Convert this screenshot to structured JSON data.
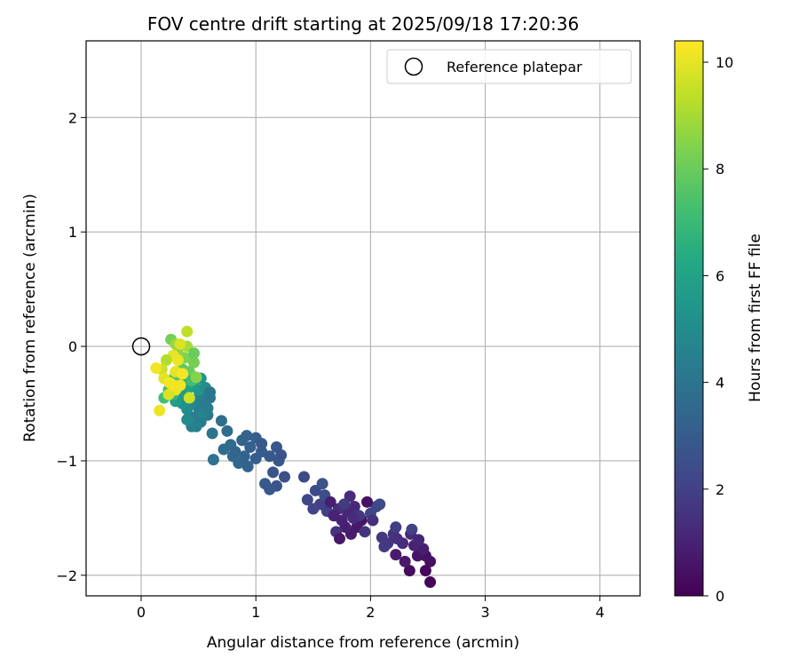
{
  "chart_data": {
    "type": "scatter",
    "title": "FOV centre drift starting at 2025/09/18 17:20:36",
    "xlabel": "Angular distance from reference (arcmin)",
    "ylabel": "Rotation from reference (arcmin)",
    "xlim": [
      -0.48,
      4.35
    ],
    "ylim": [
      -2.18,
      2.67
    ],
    "xticks": [
      0,
      1,
      2,
      3,
      4
    ],
    "yticks": [
      -2,
      -1,
      0,
      1,
      2
    ],
    "x_tick_labels": [
      "0",
      "1",
      "2",
      "3",
      "4"
    ],
    "y_tick_labels": [
      "−2",
      "−1",
      "0",
      "1",
      "2"
    ],
    "grid": true,
    "legend": {
      "position": "top-right",
      "entries": [
        {
          "label": "Reference platepar",
          "marker": "open-circle",
          "color": "#000000"
        }
      ]
    },
    "reference_point": {
      "x": 0,
      "y": 0
    },
    "colorbar": {
      "label": "Hours from first FF file",
      "range": [
        0,
        10.4
      ],
      "ticks": [
        0,
        2,
        4,
        6,
        8,
        10
      ],
      "tick_labels": [
        "0",
        "2",
        "4",
        "6",
        "8",
        "10"
      ],
      "colormap": "viridis"
    },
    "series": [
      {
        "name": "FOV centre drift",
        "color_by": "hours",
        "points": [
          {
            "x": 2.52,
            "y": -2.06,
            "c": 0.1
          },
          {
            "x": 2.48,
            "y": -1.96,
            "c": 0.2
          },
          {
            "x": 2.34,
            "y": -1.96,
            "c": 0.3
          },
          {
            "x": 2.52,
            "y": -1.88,
            "c": 0.4
          },
          {
            "x": 2.48,
            "y": -1.83,
            "c": 0.5
          },
          {
            "x": 2.41,
            "y": -1.83,
            "c": 0.6
          },
          {
            "x": 2.3,
            "y": -1.88,
            "c": 0.7
          },
          {
            "x": 2.22,
            "y": -1.82,
            "c": 0.8
          },
          {
            "x": 2.46,
            "y": -1.77,
            "c": 0.9
          },
          {
            "x": 2.38,
            "y": -1.74,
            "c": 1.0
          },
          {
            "x": 2.42,
            "y": -1.69,
            "c": 1.1
          },
          {
            "x": 2.35,
            "y": -1.64,
            "c": 1.2
          },
          {
            "x": 2.28,
            "y": -1.72,
            "c": 1.3
          },
          {
            "x": 2.23,
            "y": -1.68,
            "c": 1.4
          },
          {
            "x": 2.2,
            "y": -1.64,
            "c": 1.5
          },
          {
            "x": 2.15,
            "y": -1.72,
            "c": 1.6
          },
          {
            "x": 2.1,
            "y": -1.67,
            "c": 1.7
          },
          {
            "x": 2.12,
            "y": -1.75,
            "c": 1.8
          },
          {
            "x": 2.22,
            "y": -1.58,
            "c": 1.9
          },
          {
            "x": 2.36,
            "y": -1.6,
            "c": 2.0
          },
          {
            "x": 2.05,
            "y": -1.4,
            "c": 2.1
          },
          {
            "x": 2.0,
            "y": -1.46,
            "c": 2.2
          },
          {
            "x": 2.08,
            "y": -1.38,
            "c": 2.3
          },
          {
            "x": 1.97,
            "y": -1.36,
            "c": 0.5
          },
          {
            "x": 1.92,
            "y": -1.52,
            "c": 0.6
          },
          {
            "x": 1.88,
            "y": -1.58,
            "c": 0.7
          },
          {
            "x": 1.83,
            "y": -1.64,
            "c": 0.8
          },
          {
            "x": 1.78,
            "y": -1.58,
            "c": 0.9
          },
          {
            "x": 1.75,
            "y": -1.52,
            "c": 1.0
          },
          {
            "x": 1.8,
            "y": -1.45,
            "c": 1.1
          },
          {
            "x": 1.86,
            "y": -1.4,
            "c": 1.2
          },
          {
            "x": 1.82,
            "y": -1.31,
            "c": 1.3
          },
          {
            "x": 1.72,
            "y": -1.42,
            "c": 1.4
          },
          {
            "x": 1.7,
            "y": -1.62,
            "c": 1.5
          },
          {
            "x": 1.95,
            "y": -1.62,
            "c": 1.6
          },
          {
            "x": 1.9,
            "y": -1.48,
            "c": 1.7
          },
          {
            "x": 1.77,
            "y": -1.38,
            "c": 1.8
          },
          {
            "x": 1.62,
            "y": -1.44,
            "c": 1.9
          },
          {
            "x": 1.56,
            "y": -1.38,
            "c": 2.0
          },
          {
            "x": 1.5,
            "y": -1.42,
            "c": 2.1
          },
          {
            "x": 1.45,
            "y": -1.34,
            "c": 2.2
          },
          {
            "x": 1.42,
            "y": -1.14,
            "c": 2.3
          },
          {
            "x": 1.52,
            "y": -1.26,
            "c": 2.4
          },
          {
            "x": 1.6,
            "y": -1.3,
            "c": 2.5
          },
          {
            "x": 1.58,
            "y": -1.2,
            "c": 2.6
          },
          {
            "x": 1.65,
            "y": -1.36,
            "c": 0.9
          },
          {
            "x": 1.68,
            "y": -1.48,
            "c": 1.0
          },
          {
            "x": 1.73,
            "y": -1.68,
            "c": 0.7
          },
          {
            "x": 1.85,
            "y": -1.5,
            "c": 1.3
          },
          {
            "x": 2.02,
            "y": -1.52,
            "c": 1.4
          },
          {
            "x": 1.25,
            "y": -1.14,
            "c": 2.6
          },
          {
            "x": 1.18,
            "y": -1.22,
            "c": 2.7
          },
          {
            "x": 1.12,
            "y": -1.25,
            "c": 2.8
          },
          {
            "x": 1.08,
            "y": -1.2,
            "c": 2.9
          },
          {
            "x": 1.15,
            "y": -1.1,
            "c": 2.7
          },
          {
            "x": 1.2,
            "y": -1.0,
            "c": 2.8
          },
          {
            "x": 1.12,
            "y": -0.96,
            "c": 2.9
          },
          {
            "x": 1.05,
            "y": -0.92,
            "c": 3.0
          },
          {
            "x": 1.0,
            "y": -0.98,
            "c": 3.1
          },
          {
            "x": 0.95,
            "y": -0.88,
            "c": 3.2
          },
          {
            "x": 0.9,
            "y": -0.96,
            "c": 3.3
          },
          {
            "x": 0.85,
            "y": -1.02,
            "c": 3.4
          },
          {
            "x": 0.8,
            "y": -0.96,
            "c": 3.5
          },
          {
            "x": 0.78,
            "y": -0.86,
            "c": 3.6
          },
          {
            "x": 0.72,
            "y": -0.9,
            "c": 3.7
          },
          {
            "x": 0.92,
            "y": -0.78,
            "c": 3.2
          },
          {
            "x": 1.0,
            "y": -0.8,
            "c": 3.1
          },
          {
            "x": 1.05,
            "y": -0.85,
            "c": 2.9
          },
          {
            "x": 1.18,
            "y": -0.88,
            "c": 2.8
          },
          {
            "x": 1.22,
            "y": -0.95,
            "c": 2.7
          },
          {
            "x": 0.88,
            "y": -0.82,
            "c": 3.3
          },
          {
            "x": 0.82,
            "y": -0.92,
            "c": 3.4
          },
          {
            "x": 0.93,
            "y": -1.05,
            "c": 3.3
          },
          {
            "x": 0.63,
            "y": -0.99,
            "c": 3.9
          },
          {
            "x": 0.75,
            "y": -0.74,
            "c": 3.7
          },
          {
            "x": 0.7,
            "y": -0.65,
            "c": 3.8
          },
          {
            "x": 0.62,
            "y": -0.76,
            "c": 4.0
          },
          {
            "x": 0.58,
            "y": -0.6,
            "c": 4.1
          },
          {
            "x": 0.55,
            "y": -0.5,
            "c": 4.2
          },
          {
            "x": 0.5,
            "y": -0.54,
            "c": 4.3
          },
          {
            "x": 0.46,
            "y": -0.62,
            "c": 4.4
          },
          {
            "x": 0.44,
            "y": -0.7,
            "c": 4.5
          },
          {
            "x": 0.52,
            "y": -0.66,
            "c": 4.3
          },
          {
            "x": 0.56,
            "y": -0.43,
            "c": 4.4
          },
          {
            "x": 0.6,
            "y": -0.45,
            "c": 4.2
          },
          {
            "x": 0.48,
            "y": -0.46,
            "c": 4.6
          },
          {
            "x": 0.44,
            "y": -0.5,
            "c": 4.8
          },
          {
            "x": 0.4,
            "y": -0.55,
            "c": 5.0
          },
          {
            "x": 0.36,
            "y": -0.5,
            "c": 5.2
          },
          {
            "x": 0.34,
            "y": -0.44,
            "c": 5.4
          },
          {
            "x": 0.38,
            "y": -0.4,
            "c": 5.6
          },
          {
            "x": 0.3,
            "y": -0.48,
            "c": 5.8
          },
          {
            "x": 0.42,
            "y": -0.36,
            "c": 6.0
          },
          {
            "x": 0.46,
            "y": -0.3,
            "c": 6.2
          },
          {
            "x": 0.5,
            "y": -0.38,
            "c": 5.5
          },
          {
            "x": 0.52,
            "y": -0.28,
            "c": 5.3
          },
          {
            "x": 0.56,
            "y": -0.36,
            "c": 5.1
          },
          {
            "x": 0.54,
            "y": -0.58,
            "c": 4.7
          },
          {
            "x": 0.48,
            "y": -0.7,
            "c": 4.5
          },
          {
            "x": 0.4,
            "y": -0.64,
            "c": 4.9
          },
          {
            "x": 0.58,
            "y": -0.54,
            "c": 4.3
          },
          {
            "x": 0.6,
            "y": -0.4,
            "c": 4.1
          },
          {
            "x": 0.36,
            "y": -0.3,
            "c": 6.4
          },
          {
            "x": 0.32,
            "y": -0.36,
            "c": 6.6
          },
          {
            "x": 0.28,
            "y": -0.42,
            "c": 6.8
          },
          {
            "x": 0.24,
            "y": -0.38,
            "c": 7.0
          },
          {
            "x": 0.2,
            "y": -0.45,
            "c": 7.2
          },
          {
            "x": 0.26,
            "y": -0.3,
            "c": 7.4
          },
          {
            "x": 0.3,
            "y": -0.24,
            "c": 7.6
          },
          {
            "x": 0.36,
            "y": -0.2,
            "c": 7.8
          },
          {
            "x": 0.42,
            "y": -0.22,
            "c": 8.0
          },
          {
            "x": 0.46,
            "y": -0.14,
            "c": 8.2
          },
          {
            "x": 0.44,
            "y": -0.3,
            "c": 7.2
          },
          {
            "x": 0.38,
            "y": -0.1,
            "c": 8.4
          },
          {
            "x": 0.32,
            "y": -0.06,
            "c": 8.6
          },
          {
            "x": 0.26,
            "y": 0.06,
            "c": 8.2
          },
          {
            "x": 0.3,
            "y": 0.02,
            "c": 8.8
          },
          {
            "x": 0.4,
            "y": 0.0,
            "c": 9.0
          },
          {
            "x": 0.46,
            "y": -0.06,
            "c": 8.0
          },
          {
            "x": 0.48,
            "y": -0.27,
            "c": 8.5
          },
          {
            "x": 0.42,
            "y": -0.45,
            "c": 9.6
          },
          {
            "x": 0.4,
            "y": 0.13,
            "c": 9.4
          },
          {
            "x": 0.34,
            "y": 0.02,
            "c": 9.8
          },
          {
            "x": 0.28,
            "y": -0.08,
            "c": 10.0
          },
          {
            "x": 0.22,
            "y": -0.12,
            "c": 9.2
          },
          {
            "x": 0.18,
            "y": -0.2,
            "c": 9.6
          },
          {
            "x": 0.13,
            "y": -0.19,
            "c": 10.2
          },
          {
            "x": 0.2,
            "y": -0.28,
            "c": 10.0
          },
          {
            "x": 0.25,
            "y": -0.32,
            "c": 10.3
          },
          {
            "x": 0.3,
            "y": -0.38,
            "c": 10.1
          },
          {
            "x": 0.34,
            "y": -0.34,
            "c": 10.2
          },
          {
            "x": 0.16,
            "y": -0.56,
            "c": 10.1
          },
          {
            "x": 0.24,
            "y": -0.42,
            "c": 9.8
          },
          {
            "x": 0.3,
            "y": -0.22,
            "c": 10.0
          },
          {
            "x": 0.36,
            "y": -0.24,
            "c": 10.3
          },
          {
            "x": 0.32,
            "y": -0.12,
            "c": 10.1
          },
          {
            "x": 0.28,
            "y": -0.34,
            "c": 10.2
          }
        ]
      }
    ]
  }
}
